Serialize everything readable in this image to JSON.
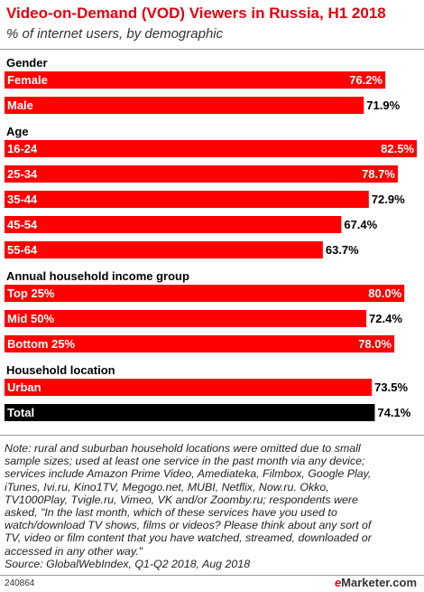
{
  "chart_data": {
    "type": "bar",
    "orientation": "horizontal",
    "title": "Video-on-Demand (VOD) Viewers in Russia, H1 2018",
    "subtitle": "% of internet users, by demographic",
    "xlim": [
      0,
      82.5
    ],
    "grid": false,
    "groups": [
      {
        "name": "Gender",
        "items": [
          {
            "label": "Female",
            "value": 76.2,
            "display": "76.2%"
          },
          {
            "label": "Male",
            "value": 71.9,
            "display": "71.9%"
          }
        ]
      },
      {
        "name": "Age",
        "items": [
          {
            "label": "16-24",
            "value": 82.5,
            "display": "82.5%"
          },
          {
            "label": "25-34",
            "value": 78.7,
            "display": "78.7%"
          },
          {
            "label": "35-44",
            "value": 72.9,
            "display": "72.9%"
          },
          {
            "label": "45-54",
            "value": 67.4,
            "display": "67.4%"
          },
          {
            "label": "55-64",
            "value": 63.7,
            "display": "63.7%"
          }
        ]
      },
      {
        "name": "Annual household income group",
        "items": [
          {
            "label": "Top 25%",
            "value": 80.0,
            "display": "80.0%"
          },
          {
            "label": "Mid 50%",
            "value": 72.4,
            "display": "72.4%"
          },
          {
            "label": "Bottom 25%",
            "value": 78.0,
            "display": "78.0%"
          }
        ]
      },
      {
        "name": "Household location",
        "items": [
          {
            "label": "Urban",
            "value": 73.5,
            "display": "73.5%"
          },
          {
            "label": "Total",
            "value": 74.1,
            "display": "74.1%",
            "highlight": true
          }
        ]
      }
    ]
  },
  "colors": {
    "bar": "#ff0000",
    "total_bar": "#000000",
    "title": "#e3000f",
    "bar_label": "#ffffff",
    "value_label": "#000000"
  },
  "note_lines": [
    "Note: rural and suburban household locations were omitted due to small",
    "sample sizes; used at least one service in the past month via any device;",
    "services include Amazon Prime Video, Amediateka, Filmbox, Google Play,",
    "iTunes, Ivi.ru, Kino1TV, Megogo.net, MUBI, Netflix, Now.ru. Okko,",
    "TV1000Play, Tvigle.ru, Vimeo, VK and/or Zoomby.ru; respondents were",
    "asked, \"In the last month, which of these services have you used to",
    "watch/download TV shows, films or videos? Please think about any sort of",
    "TV, video or film content that you have watched, streamed, downloaded or",
    "accessed in any other way.\""
  ],
  "source": "Source: GlobalWebIndex, Q1-Q2 2018, Aug 2018",
  "chart_id": "240864",
  "brand": {
    "e": "e",
    "rest": "Marketer",
    "suffix": ".com"
  }
}
